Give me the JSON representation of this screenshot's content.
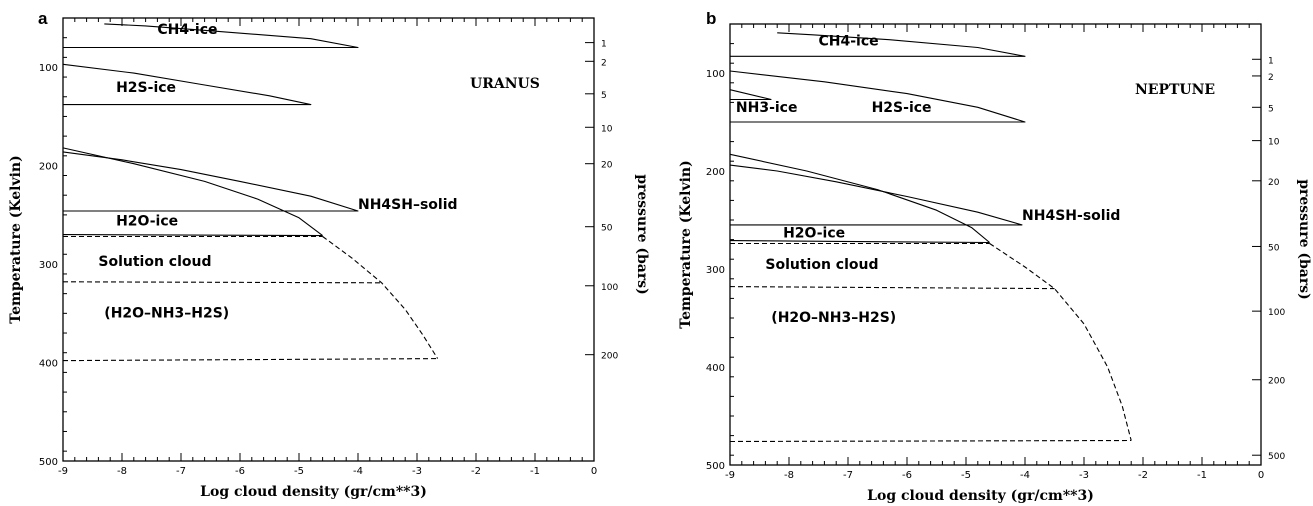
{
  "chart_data": [
    {
      "panel": "a",
      "planet": "URANUS",
      "type": "line",
      "xlabel": "Log cloud density (gr/cm**3)",
      "ylabel": "Temperature (Kelvin)",
      "y2label": "pressure (bars)",
      "xlim": [
        -9,
        0
      ],
      "ylim": [
        500,
        50
      ],
      "xticks": [
        -9,
        -8,
        -7,
        -6,
        -5,
        -4,
        -3,
        -2,
        -1,
        0
      ],
      "yticks": [
        100,
        200,
        300,
        400,
        500
      ],
      "pressure_ticks": [
        {
          "label": "1",
          "T": 75
        },
        {
          "label": "2",
          "T": 94
        },
        {
          "label": "5",
          "T": 127
        },
        {
          "label": "10",
          "T": 161
        },
        {
          "label": "20",
          "T": 198
        },
        {
          "label": "50",
          "T": 262
        },
        {
          "label": "100",
          "T": 322
        },
        {
          "label": "200",
          "T": 392
        }
      ],
      "labels": [
        {
          "text": "CH4-ice",
          "x": -7.4,
          "T": 66
        },
        {
          "text": "H2S-ice",
          "x": -8.1,
          "T": 125
        },
        {
          "text": "NH4SH–solid",
          "x": -4.0,
          "T": 244
        },
        {
          "text": "H2O-ice",
          "x": -8.1,
          "T": 261
        },
        {
          "text": "Solution cloud",
          "x": -8.4,
          "T": 302
        },
        {
          "text": "(H2O–NH3–H2S)",
          "x": -8.3,
          "T": 354
        }
      ],
      "series": [
        {
          "style": "solid",
          "points": [
            [
              -9,
              80
            ],
            [
              -4.0,
              80
            ],
            [
              -4.8,
              71
            ],
            [
              -6.5,
              63
            ],
            [
              -7.6,
              58
            ],
            [
              -8.3,
              56
            ]
          ]
        },
        {
          "style": "solid",
          "points": [
            [
              -9,
              138
            ],
            [
              -4.8,
              138
            ],
            [
              -5.5,
              129
            ],
            [
              -6.7,
              117
            ],
            [
              -7.8,
              106
            ],
            [
              -9,
              97
            ]
          ]
        },
        {
          "style": "solid",
          "points": [
            [
              -9,
              246
            ],
            [
              -4.0,
              246
            ],
            [
              -4.8,
              231
            ],
            [
              -6.0,
              216
            ],
            [
              -7.0,
              204
            ],
            [
              -8.0,
              194
            ],
            [
              -9,
              186
            ]
          ]
        },
        {
          "style": "solid",
          "points": [
            [
              -9,
              182
            ],
            [
              -7.8,
              198
            ],
            [
              -6.6,
              216
            ],
            [
              -5.7,
              234
            ],
            [
              -5.0,
              253
            ],
            [
              -4.6,
              271
            ]
          ]
        },
        {
          "style": "solid",
          "points": [
            [
              -9,
              270
            ],
            [
              -4.6,
              271
            ]
          ]
        },
        {
          "style": "dashed",
          "points": [
            [
              -9,
              272
            ],
            [
              -4.6,
              272
            ]
          ]
        },
        {
          "style": "dashed",
          "points": [
            [
              -4.6,
              272
            ],
            [
              -4.1,
              294
            ],
            [
              -3.6,
              319
            ],
            [
              -3.2,
              346
            ],
            [
              -2.9,
              372
            ],
            [
              -2.65,
              396
            ]
          ]
        },
        {
          "style": "dashed",
          "points": [
            [
              -9,
              318
            ],
            [
              -3.6,
              319
            ]
          ]
        },
        {
          "style": "dashed",
          "points": [
            [
              -9,
              398
            ],
            [
              -2.65,
              396
            ]
          ]
        }
      ]
    },
    {
      "panel": "b",
      "planet": "NEPTUNE",
      "type": "line",
      "xlabel": "Log cloud density (gr/cm**3)",
      "ylabel": "Temperature (Kelvin)",
      "y2label": "pressure (bars)",
      "xlim": [
        -9,
        0
      ],
      "ylim": [
        500,
        50
      ],
      "xticks": [
        -9,
        -8,
        -7,
        -6,
        -5,
        -4,
        -3,
        -2,
        -1,
        0
      ],
      "yticks": [
        100,
        200,
        300,
        400,
        500
      ],
      "pressure_ticks": [
        {
          "label": "1",
          "T": 86
        },
        {
          "label": "2",
          "T": 103
        },
        {
          "label": "5",
          "T": 135
        },
        {
          "label": "10",
          "T": 169
        },
        {
          "label": "20",
          "T": 210
        },
        {
          "label": "50",
          "T": 277
        },
        {
          "label": "100",
          "T": 343
        },
        {
          "label": "200",
          "T": 413
        },
        {
          "label": "500",
          "T": 490
        }
      ],
      "labels": [
        {
          "text": "CH4-ice",
          "x": -7.5,
          "T": 72
        },
        {
          "text": "NH3-ice",
          "x": -8.9,
          "T": 140
        },
        {
          "text": "H2S-ice",
          "x": -6.6,
          "T": 140
        },
        {
          "text": "NH4SH-solid",
          "x": -4.05,
          "T": 250
        },
        {
          "text": "H2O-ice",
          "x": -8.1,
          "T": 268
        },
        {
          "text": "Solution cloud",
          "x": -8.4,
          "T": 300
        },
        {
          "text": "(H2O–NH3–H2S)",
          "x": -8.3,
          "T": 354
        }
      ],
      "series": [
        {
          "style": "solid",
          "points": [
            [
              -9,
              83
            ],
            [
              -4.0,
              83
            ],
            [
              -4.8,
              74
            ],
            [
              -6.3,
              66
            ],
            [
              -7.6,
              61
            ],
            [
              -8.2,
              59
            ]
          ]
        },
        {
          "style": "solid",
          "points": [
            [
              -9,
              150
            ],
            [
              -4.0,
              150
            ],
            [
              -4.8,
              135
            ],
            [
              -6.0,
              121
            ],
            [
              -7.4,
              109
            ],
            [
              -9,
              98
            ]
          ]
        },
        {
          "style": "solid",
          "points": [
            [
              -9,
              127
            ],
            [
              -8.3,
              127
            ]
          ]
        },
        {
          "style": "solid",
          "points": [
            [
              -9,
              117
            ],
            [
              -8.3,
              127
            ]
          ]
        },
        {
          "style": "solid",
          "points": [
            [
              -9,
              255
            ],
            [
              -4.05,
              255
            ],
            [
              -4.8,
              242
            ],
            [
              -6.0,
              226
            ],
            [
              -7.2,
              211
            ],
            [
              -8.2,
              200
            ],
            [
              -9,
              194
            ]
          ]
        },
        {
          "style": "solid",
          "points": [
            [
              -9,
              183
            ],
            [
              -7.7,
              200
            ],
            [
              -6.5,
              219
            ],
            [
              -5.5,
              240
            ],
            [
              -4.9,
              258
            ],
            [
              -4.6,
              273
            ]
          ]
        },
        {
          "style": "solid",
          "points": [
            [
              -9,
              271
            ],
            [
              -4.6,
              273
            ]
          ]
        },
        {
          "style": "dashed",
          "points": [
            [
              -9,
              274
            ],
            [
              -4.6,
              274
            ]
          ]
        },
        {
          "style": "dashed",
          "points": [
            [
              -4.6,
              274
            ],
            [
              -4.0,
              298
            ],
            [
              -3.5,
              320
            ],
            [
              -3.0,
              356
            ],
            [
              -2.6,
              400
            ],
            [
              -2.35,
              440
            ],
            [
              -2.2,
              475
            ]
          ]
        },
        {
          "style": "dashed",
          "points": [
            [
              -9,
              318
            ],
            [
              -3.5,
              320
            ]
          ]
        },
        {
          "style": "dashed",
          "points": [
            [
              -9,
              476
            ],
            [
              -2.2,
              475
            ]
          ]
        }
      ]
    }
  ]
}
